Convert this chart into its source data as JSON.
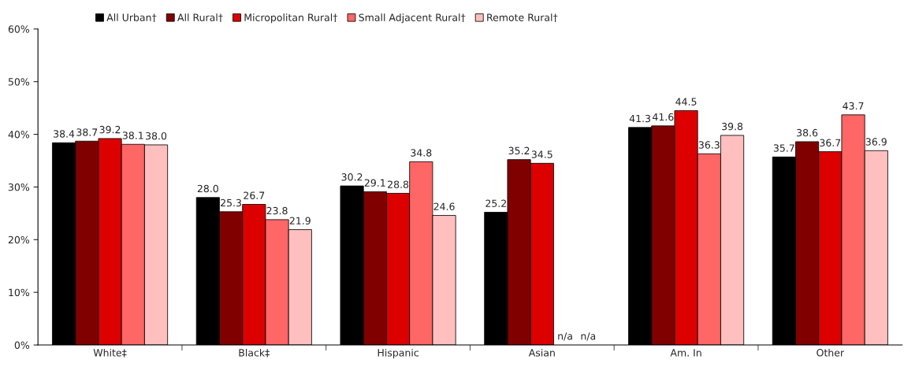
{
  "chart_data": {
    "type": "bar",
    "categories": [
      "White‡",
      "Black‡",
      "Hispanic",
      "Asian",
      "Am. In",
      "Other"
    ],
    "series": [
      {
        "name": "All Urban†",
        "color": "#000000",
        "values": [
          38.4,
          28.0,
          30.2,
          25.2,
          41.3,
          35.7
        ],
        "value_labels": [
          "38.4",
          "28.0",
          "30.2",
          "25.2",
          "41.3",
          "35.7"
        ]
      },
      {
        "name": "All Rural†",
        "color": "#800000",
        "values": [
          38.7,
          25.3,
          29.1,
          35.2,
          41.6,
          38.6
        ],
        "value_labels": [
          "38.7",
          "25.3",
          "29.1",
          "35.2",
          "41.6",
          "38.6"
        ]
      },
      {
        "name": "Micropolitan Rural†",
        "color": "#dd0000",
        "values": [
          39.2,
          26.7,
          28.8,
          34.5,
          44.5,
          36.7
        ],
        "value_labels": [
          "39.2",
          "26.7",
          "28.8",
          "34.5",
          "44.5",
          "36.7"
        ]
      },
      {
        "name": "Small Adjacent Rural†",
        "color": "#ff6666",
        "values": [
          38.1,
          23.8,
          34.8,
          null,
          36.3,
          43.7
        ],
        "value_labels": [
          "38.1",
          "23.8",
          "34.8",
          "n/a",
          "36.3",
          "43.7"
        ]
      },
      {
        "name": "Remote Rural†",
        "color": "#ffbfbf",
        "values": [
          38.0,
          21.9,
          24.6,
          null,
          39.8,
          36.9
        ],
        "value_labels": [
          "38.0",
          "21.9",
          "24.6",
          "n/a",
          "39.8",
          "36.9"
        ]
      }
    ],
    "ylim": [
      0,
      60
    ],
    "yticks": [
      {
        "value": 0,
        "label": "0%"
      },
      {
        "value": 10,
        "label": "10%"
      },
      {
        "value": 20,
        "label": "20%"
      },
      {
        "value": 30,
        "label": "30%"
      },
      {
        "value": 40,
        "label": "40%"
      },
      {
        "value": 50,
        "label": "50%"
      },
      {
        "value": 60,
        "label": "60%"
      }
    ],
    "legend": "top",
    "grid": false
  }
}
